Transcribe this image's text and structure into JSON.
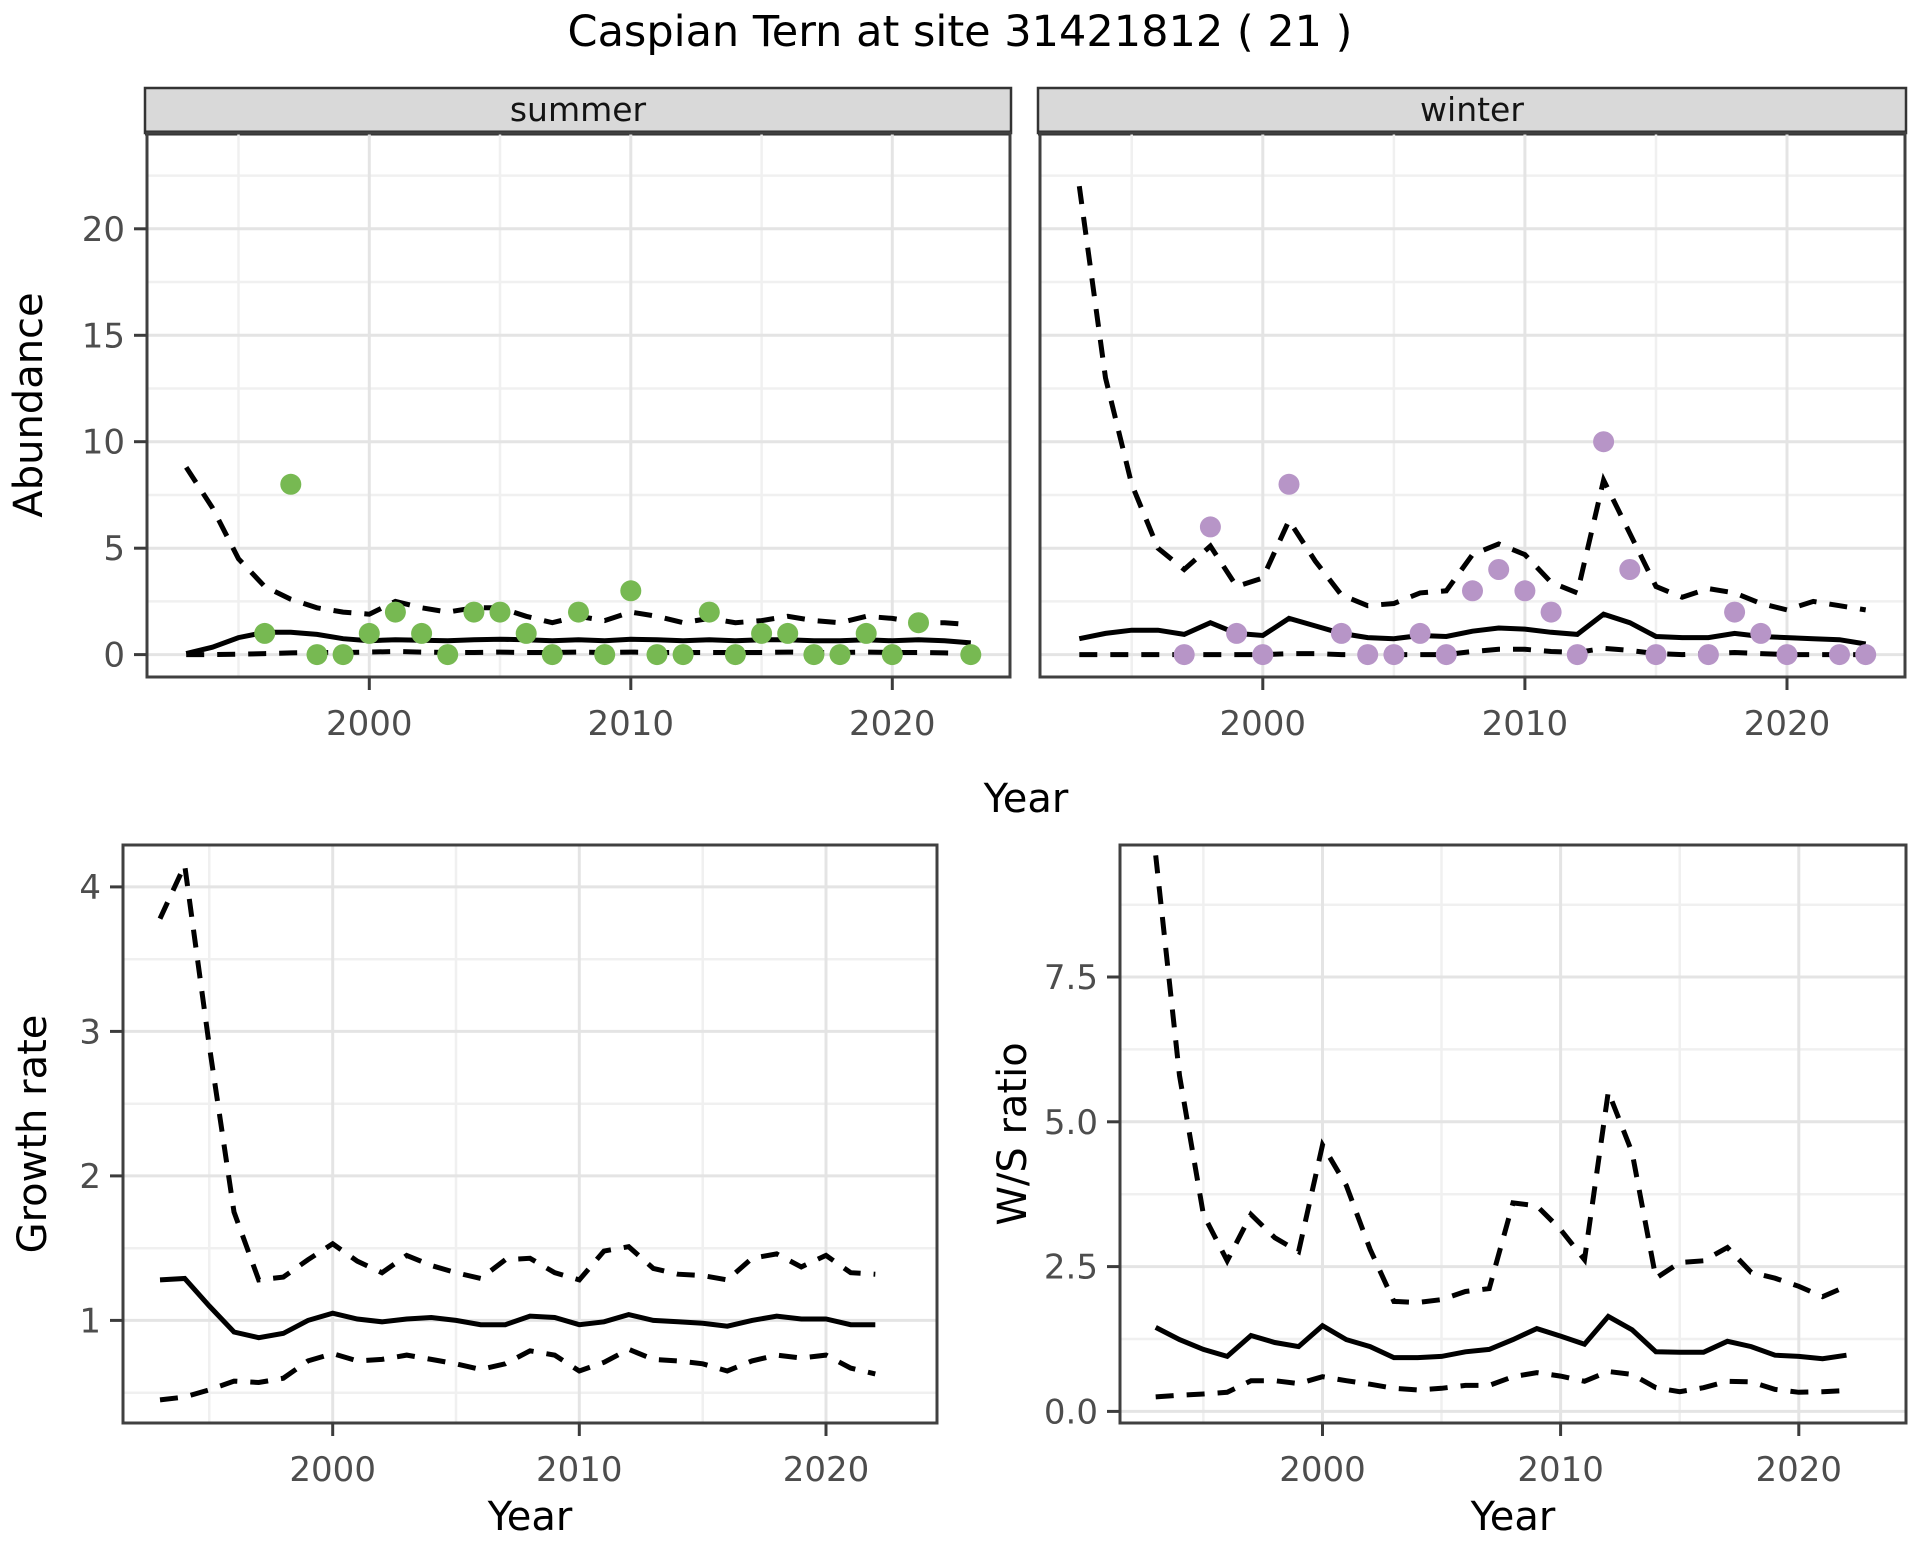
{
  "title": "Caspian Tern at site 31421812 ( 21 )",
  "colors": {
    "summer_point": "#77b952",
    "winter_point": "#b795c7",
    "line": "#000000",
    "strip_bg": "#d9d9d9",
    "grid_major": "#e4e4e4",
    "grid_minor": "#f0f0f0",
    "axis": "#3c3c3c",
    "tick_text": "#4d4d4d"
  },
  "chart_data": [
    {
      "id": "abundance-summer",
      "type": "line+scatter",
      "facet": "summer",
      "ylabel": "Abundance",
      "xlabel": "Year",
      "legend": "none",
      "grid": "on",
      "xlim": [
        1991.5,
        2024.5
      ],
      "ylim": [
        -1.05,
        24.5
      ],
      "xticks": {
        "values": [
          2000,
          2010,
          2020
        ],
        "labels": [
          "2000",
          "2010",
          "2020"
        ]
      },
      "yticks": {
        "values": [
          0,
          5,
          10,
          15,
          20
        ],
        "labels": [
          "0",
          "5",
          "10",
          "15",
          "20"
        ]
      },
      "x_minor": [
        1995,
        2005,
        2015
      ],
      "y_minor": [
        2.5,
        7.5,
        12.5,
        17.5,
        22.5
      ],
      "years": [
        1993,
        1994,
        1995,
        1996,
        1997,
        1998,
        1999,
        2000,
        2001,
        2002,
        2003,
        2004,
        2005,
        2006,
        2007,
        2008,
        2009,
        2010,
        2011,
        2012,
        2013,
        2014,
        2015,
        2016,
        2017,
        2018,
        2019,
        2020,
        2021,
        2022,
        2023
      ],
      "median": [
        0.05,
        0.35,
        0.8,
        1.05,
        1.05,
        0.95,
        0.75,
        0.65,
        0.7,
        0.68,
        0.65,
        0.7,
        0.72,
        0.7,
        0.65,
        0.7,
        0.65,
        0.72,
        0.7,
        0.65,
        0.7,
        0.65,
        0.7,
        0.7,
        0.65,
        0.65,
        0.7,
        0.65,
        0.7,
        0.65,
        0.55
      ],
      "upper_ci": [
        8.8,
        6.9,
        4.5,
        3.2,
        2.6,
        2.2,
        2.0,
        1.9,
        2.5,
        2.2,
        2.0,
        2.2,
        2.2,
        1.8,
        1.5,
        1.8,
        1.6,
        2.0,
        1.8,
        1.5,
        1.7,
        1.5,
        1.6,
        1.8,
        1.6,
        1.5,
        1.8,
        1.7,
        1.5,
        1.5,
        1.4
      ],
      "lower_ci": [
        0,
        0,
        0.02,
        0.05,
        0.08,
        0.1,
        0.1,
        0.12,
        0.15,
        0.12,
        0.1,
        0.1,
        0.12,
        0.1,
        0.1,
        0.12,
        0.1,
        0.12,
        0.1,
        0.1,
        0.1,
        0.1,
        0.1,
        0.12,
        0.1,
        0.1,
        0.12,
        0.1,
        0.1,
        0.08,
        0.05
      ],
      "points": {
        "x": [
          1996,
          1997,
          1998,
          1999,
          2000,
          2001,
          2002,
          2003,
          2004,
          2005,
          2006,
          2007,
          2008,
          2009,
          2010,
          2011,
          2012,
          2013,
          2014,
          2015,
          2016,
          2017,
          2018,
          2019,
          2020,
          2021,
          2023
        ],
        "y": [
          1,
          8,
          0,
          0,
          1,
          2,
          1,
          0,
          2,
          2,
          1,
          0,
          2,
          0,
          3,
          0,
          0,
          2,
          0,
          1,
          1,
          0,
          0,
          1,
          0,
          1.5,
          0
        ]
      },
      "point_color_key": "summer_point"
    },
    {
      "id": "abundance-winter",
      "type": "line+scatter",
      "facet": "winter",
      "ylabel": "Abundance",
      "xlabel": "Year",
      "legend": "none",
      "grid": "on",
      "xlim": [
        1991.5,
        2024.5
      ],
      "ylim": [
        -1.05,
        24.5
      ],
      "xticks": {
        "values": [
          2000,
          2010,
          2020
        ],
        "labels": [
          "2000",
          "2010",
          "2020"
        ]
      },
      "yticks": {
        "values": [
          0,
          5,
          10,
          15,
          20
        ],
        "labels": [
          "0",
          "5",
          "10",
          "15",
          "20"
        ]
      },
      "x_minor": [
        1995,
        2005,
        2015
      ],
      "y_minor": [
        2.5,
        7.5,
        12.5,
        17.5,
        22.5
      ],
      "years": [
        1993,
        1994,
        1995,
        1996,
        1997,
        1998,
        1999,
        2000,
        2001,
        2002,
        2003,
        2004,
        2005,
        2006,
        2007,
        2008,
        2009,
        2010,
        2011,
        2012,
        2013,
        2014,
        2015,
        2016,
        2017,
        2018,
        2019,
        2020,
        2021,
        2022,
        2023
      ],
      "median": [
        0.75,
        1.0,
        1.15,
        1.15,
        0.95,
        1.5,
        1.0,
        0.9,
        1.7,
        1.35,
        1.0,
        0.8,
        0.75,
        0.9,
        0.85,
        1.1,
        1.25,
        1.2,
        1.05,
        0.95,
        1.9,
        1.5,
        0.85,
        0.8,
        0.8,
        1.0,
        0.85,
        0.8,
        0.75,
        0.7,
        0.5
      ],
      "upper_ci": [
        22,
        13,
        8,
        5,
        4,
        5.1,
        3.2,
        3.6,
        6.3,
        4.4,
        2.8,
        2.3,
        2.4,
        2.9,
        3.0,
        4.7,
        5.2,
        4.7,
        3.4,
        2.9,
        8.2,
        5.7,
        3.2,
        2.7,
        3.1,
        2.9,
        2.4,
        2.1,
        2.5,
        2.3,
        2.1
      ],
      "lower_ci": [
        0,
        0,
        0,
        0,
        0,
        0,
        0,
        0,
        0.05,
        0.05,
        0,
        0,
        0,
        0,
        0,
        0.15,
        0.25,
        0.25,
        0.15,
        0.1,
        0.3,
        0.2,
        0.05,
        0,
        0.05,
        0.1,
        0.05,
        0,
        0,
        0,
        0
      ],
      "points": {
        "x": [
          1997,
          1998,
          1999,
          2000,
          2001,
          2003,
          2004,
          2005,
          2006,
          2007,
          2008,
          2009,
          2010,
          2011,
          2012,
          2013,
          2014,
          2015,
          2017,
          2018,
          2019,
          2020,
          2022,
          2023
        ],
        "y": [
          0,
          6,
          1,
          0,
          8,
          1,
          0,
          0,
          1,
          0,
          3,
          4,
          3,
          2,
          0,
          10,
          4,
          0,
          0,
          2,
          1,
          0,
          0,
          0
        ]
      },
      "point_color_key": "winter_point"
    },
    {
      "id": "growth-rate",
      "type": "line",
      "facet": "",
      "ylabel": "Growth rate",
      "xlabel": "Year",
      "legend": "none",
      "grid": "on",
      "xlim": [
        1991.5,
        2024.5
      ],
      "ylim": [
        0.29,
        4.29
      ],
      "xticks": {
        "values": [
          2000,
          2010,
          2020
        ],
        "labels": [
          "2000",
          "2010",
          "2020"
        ]
      },
      "yticks": {
        "values": [
          1,
          2,
          3,
          4
        ],
        "labels": [
          "1",
          "2",
          "3",
          "4"
        ]
      },
      "x_minor": [
        1995,
        2005,
        2015
      ],
      "y_minor": [
        0.5,
        1.5,
        2.5,
        3.5
      ],
      "years": [
        1993,
        1994,
        1995,
        1996,
        1997,
        1998,
        1999,
        2000,
        2001,
        2002,
        2003,
        2004,
        2005,
        2006,
        2007,
        2008,
        2009,
        2010,
        2011,
        2012,
        2013,
        2014,
        2015,
        2016,
        2017,
        2018,
        2019,
        2020,
        2021,
        2022
      ],
      "median": [
        1.28,
        1.29,
        1.1,
        0.92,
        0.88,
        0.91,
        1.0,
        1.05,
        1.01,
        0.99,
        1.01,
        1.02,
        1.0,
        0.97,
        0.97,
        1.03,
        1.02,
        0.97,
        0.99,
        1.04,
        1.0,
        0.99,
        0.98,
        0.96,
        1.0,
        1.03,
        1.01,
        1.01,
        0.97,
        0.97
      ],
      "upper_ci": [
        3.78,
        4.15,
        2.9,
        1.75,
        1.28,
        1.3,
        1.42,
        1.53,
        1.41,
        1.33,
        1.45,
        1.38,
        1.33,
        1.29,
        1.42,
        1.43,
        1.33,
        1.28,
        1.48,
        1.51,
        1.36,
        1.32,
        1.31,
        1.28,
        1.43,
        1.46,
        1.37,
        1.45,
        1.33,
        1.32
      ],
      "lower_ci": [
        0.45,
        0.47,
        0.52,
        0.58,
        0.57,
        0.6,
        0.72,
        0.77,
        0.72,
        0.73,
        0.76,
        0.73,
        0.7,
        0.66,
        0.7,
        0.79,
        0.76,
        0.65,
        0.71,
        0.8,
        0.73,
        0.72,
        0.7,
        0.65,
        0.72,
        0.76,
        0.74,
        0.76,
        0.67,
        0.63
      ],
      "points": null,
      "point_color_key": null
    },
    {
      "id": "ws-ratio",
      "type": "line",
      "facet": "",
      "ylabel": "W/S ratio",
      "xlabel": "Year",
      "legend": "none",
      "grid": "on",
      "xlim": [
        1991.5,
        2024.5
      ],
      "ylim": [
        -0.2,
        9.78
      ],
      "xticks": {
        "values": [
          2000,
          2010,
          2020
        ],
        "labels": [
          "2000",
          "2010",
          "2020"
        ]
      },
      "yticks": {
        "values": [
          0,
          2.5,
          5,
          7.5
        ],
        "labels": [
          "0.0",
          "2.5",
          "5.0",
          "7.5"
        ]
      },
      "x_minor": [
        1995,
        2005,
        2015
      ],
      "y_minor": [
        1.25,
        3.75,
        6.25,
        8.75
      ],
      "years": [
        1993,
        1994,
        1995,
        1996,
        1997,
        1998,
        1999,
        2000,
        2001,
        2002,
        2003,
        2004,
        2005,
        2006,
        2007,
        2008,
        2009,
        2010,
        2011,
        2012,
        2013,
        2014,
        2015,
        2016,
        2017,
        2018,
        2019,
        2020,
        2021,
        2022
      ],
      "median": [
        1.45,
        1.24,
        1.07,
        0.95,
        1.31,
        1.19,
        1.12,
        1.48,
        1.24,
        1.12,
        0.93,
        0.93,
        0.95,
        1.03,
        1.07,
        1.24,
        1.43,
        1.3,
        1.16,
        1.64,
        1.41,
        1.03,
        1.02,
        1.02,
        1.21,
        1.12,
        0.97,
        0.95,
        0.91,
        0.97
      ],
      "upper_ci": [
        9.6,
        5.8,
        3.4,
        2.6,
        3.4,
        3.0,
        2.76,
        4.6,
        3.9,
        2.8,
        1.9,
        1.88,
        1.93,
        2.07,
        2.12,
        3.6,
        3.55,
        3.14,
        2.62,
        5.52,
        4.47,
        2.3,
        2.57,
        2.6,
        2.83,
        2.4,
        2.3,
        2.16,
        1.98,
        2.16
      ],
      "lower_ci": [
        0.25,
        0.28,
        0.3,
        0.33,
        0.53,
        0.53,
        0.48,
        0.6,
        0.53,
        0.47,
        0.4,
        0.37,
        0.4,
        0.45,
        0.45,
        0.6,
        0.67,
        0.61,
        0.52,
        0.69,
        0.64,
        0.41,
        0.34,
        0.41,
        0.52,
        0.51,
        0.38,
        0.33,
        0.34,
        0.36
      ],
      "points": null,
      "point_color_key": null
    }
  ]
}
